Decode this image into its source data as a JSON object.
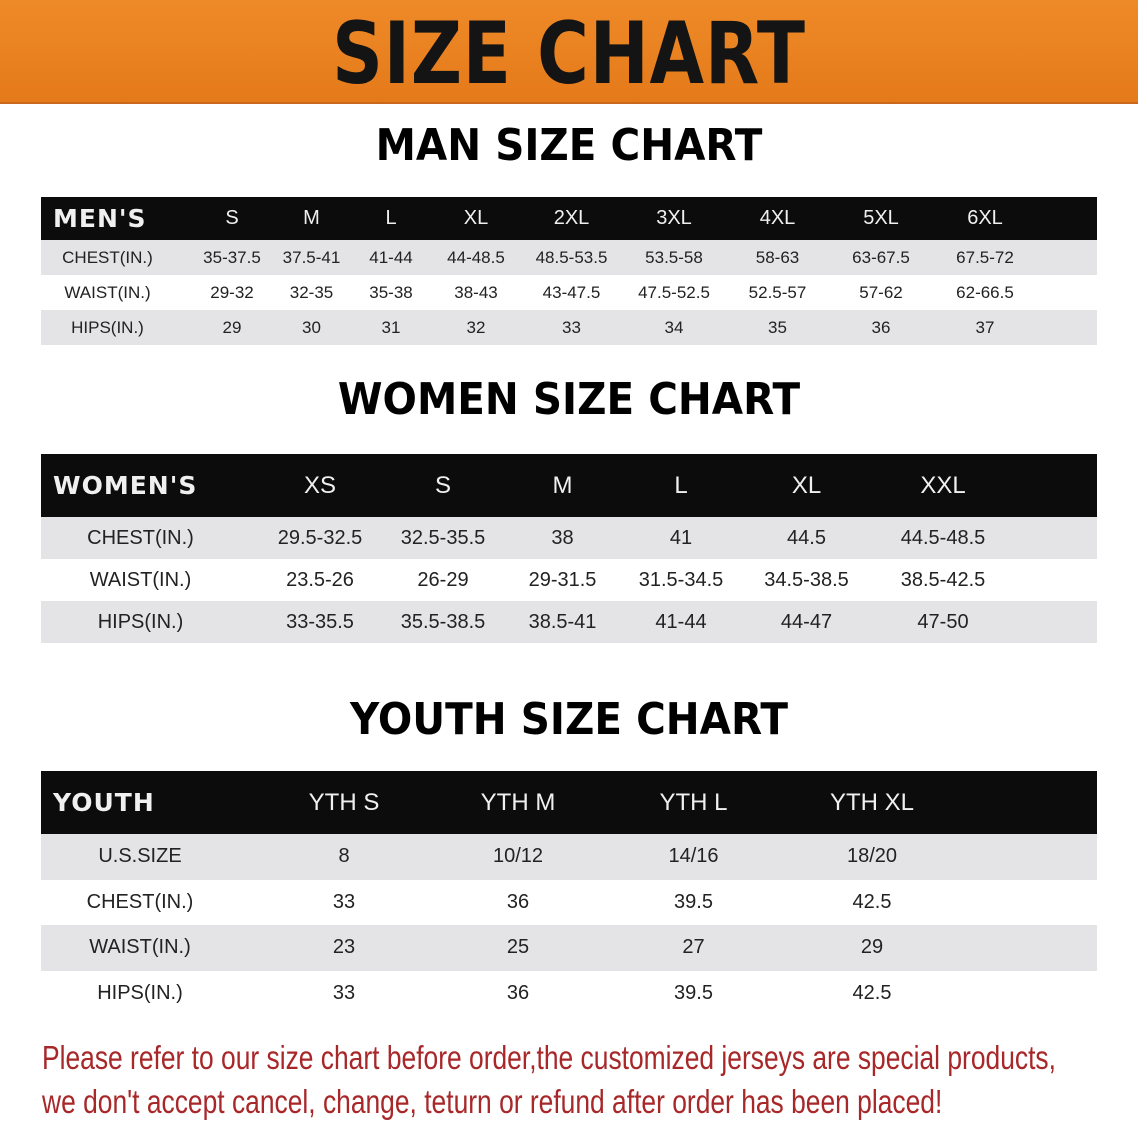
{
  "banner": {
    "title": "SIZE CHART",
    "color": "#ea831f"
  },
  "men": {
    "title": "MAN SIZE CHART",
    "header": [
      "MEN'S",
      "S",
      "M",
      "L",
      "XL",
      "2XL",
      "3XL",
      "4XL",
      "5XL",
      "6XL"
    ],
    "rows": [
      [
        "CHEST(IN.)",
        "35-37.5",
        "37.5-41",
        "41-44",
        "44-48.5",
        "48.5-53.5",
        "53.5-58",
        "58-63",
        "63-67.5",
        "67.5-72"
      ],
      [
        "WAIST(IN.)",
        "29-32",
        "32-35",
        "35-38",
        "38-43",
        "43-47.5",
        "47.5-52.5",
        "52.5-57",
        "57-62",
        "62-66.5"
      ],
      [
        "HIPS(IN.)",
        "29",
        "30",
        "31",
        "32",
        "33",
        "34",
        "35",
        "36",
        "37"
      ]
    ]
  },
  "women": {
    "title": "WOMEN SIZE CHART",
    "header": [
      "WOMEN'S",
      "XS",
      "S",
      "M",
      "L",
      "XL",
      "XXL"
    ],
    "rows": [
      [
        "CHEST(IN.)",
        "29.5-32.5",
        "32.5-35.5",
        "38",
        "41",
        "44.5",
        "44.5-48.5"
      ],
      [
        "WAIST(IN.)",
        "23.5-26",
        "26-29",
        "29-31.5",
        "31.5-34.5",
        "34.5-38.5",
        "38.5-42.5"
      ],
      [
        "HIPS(IN.)",
        "33-35.5",
        "35.5-38.5",
        "38.5-41",
        "41-44",
        "44-47",
        "47-50"
      ]
    ]
  },
  "youth": {
    "title": "YOUTH SIZE CHART",
    "header": [
      "YOUTH",
      "YTH S",
      "YTH M",
      "YTH L",
      "YTH XL"
    ],
    "rows": [
      [
        "U.S.SIZE",
        "8",
        "10/12",
        "14/16",
        "18/20"
      ],
      [
        "CHEST(IN.)",
        "33",
        "36",
        "39.5",
        "42.5"
      ],
      [
        "WAIST(IN.)",
        "23",
        "25",
        "27",
        "29"
      ],
      [
        "HIPS(IN.)",
        "33",
        "36",
        "39.5",
        "42.5"
      ]
    ]
  },
  "note": {
    "line1": "Please refer to our size chart before order,the customized jerseys are special products,",
    "line2": "we don't accept cancel, change, teturn or refund after order has been placed!",
    "color": "#a8282a"
  }
}
